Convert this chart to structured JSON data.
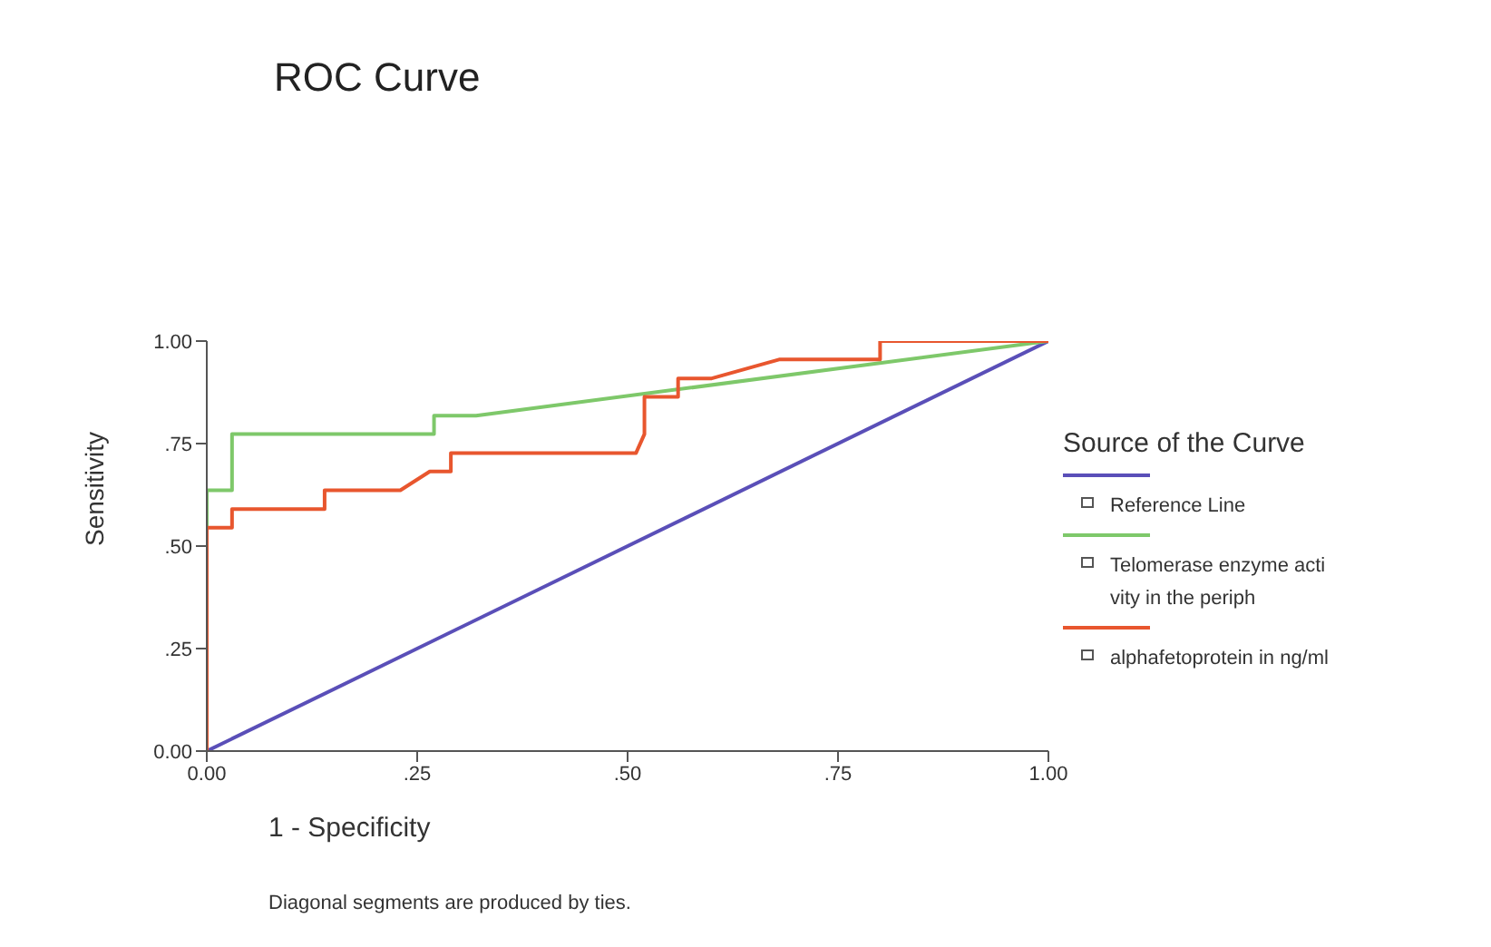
{
  "chart_data": {
    "type": "line",
    "title": "ROC Curve",
    "xlabel": "1 - Specificity",
    "ylabel": "Sensitivity",
    "legend_title": "Source of the Curve",
    "legend": "right",
    "annotations": [
      "Diagonal segments are produced by ties."
    ],
    "xlim": [
      0,
      1
    ],
    "ylim": [
      0,
      1
    ],
    "xticks": [
      {
        "value": 0,
        "label": "0.00"
      },
      {
        "value": 0.25,
        "label": ".25"
      },
      {
        "value": 0.5,
        "label": ".50"
      },
      {
        "value": 0.75,
        "label": ".75"
      },
      {
        "value": 1,
        "label": "1.00"
      }
    ],
    "yticks": [
      {
        "value": 0,
        "label": "0.00"
      },
      {
        "value": 0.25,
        "label": ".25"
      },
      {
        "value": 0.5,
        "label": ".50"
      },
      {
        "value": 0.75,
        "label": ".75"
      },
      {
        "value": 1,
        "label": "1.00"
      }
    ],
    "series": [
      {
        "name": "Reference Line",
        "color": "#5a4fb8",
        "x": [
          0,
          1
        ],
        "values": [
          0,
          1
        ]
      },
      {
        "name": "Telomerase enzyme activity in the periph",
        "color": "#7ec86a",
        "x": [
          0,
          0,
          0.03,
          0.03,
          0.27,
          0.27,
          0.32,
          1
        ],
        "values": [
          0,
          0.636,
          0.636,
          0.773,
          0.773,
          0.818,
          0.818,
          1
        ]
      },
      {
        "name": "alphafetoprotein in ng/ml",
        "color": "#e8562e",
        "x": [
          0,
          0,
          0.03,
          0.03,
          0.14,
          0.14,
          0.23,
          0.265,
          0.29,
          0.29,
          0.51,
          0.52,
          0.52,
          0.56,
          0.56,
          0.6,
          0.68,
          0.8,
          0.8,
          1
        ],
        "values": [
          0,
          0.545,
          0.545,
          0.59,
          0.59,
          0.636,
          0.636,
          0.682,
          0.682,
          0.727,
          0.727,
          0.773,
          0.864,
          0.864,
          0.909,
          0.909,
          0.955,
          0.955,
          1,
          1
        ]
      }
    ]
  }
}
